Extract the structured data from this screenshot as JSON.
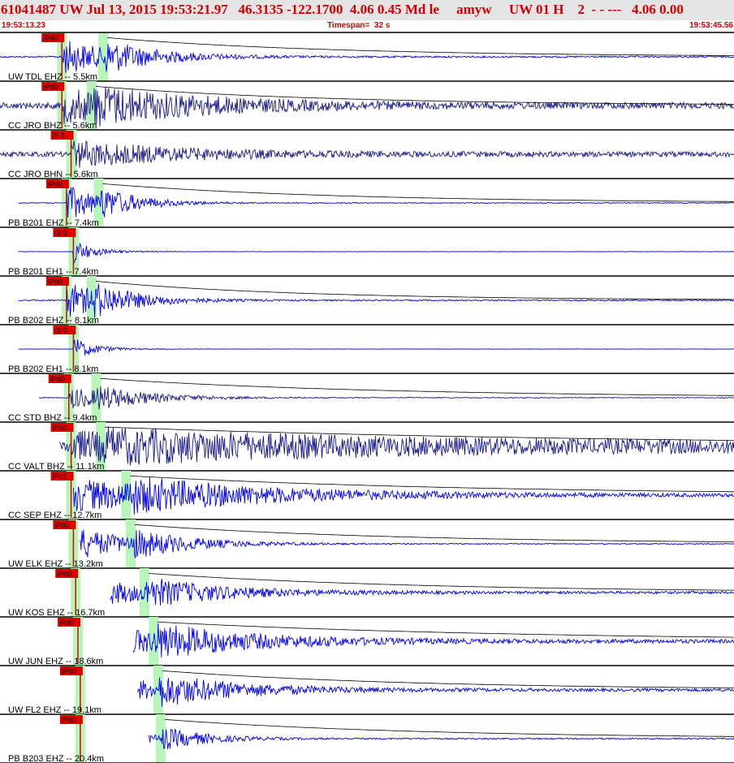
{
  "header": {
    "title": "61041487 UW Jul 13, 2015 19:53:21.97   46.3135 -122.1700  4.06 0.45 Md le     amyw     UW 01 H    2  - - ---   4.06 0.00",
    "start_time": "19:53:13.23",
    "timespan": "Timespan=  32 s",
    "end_time": "19:53:45.56"
  },
  "colors": {
    "trace": "#0000ff",
    "trace_dark": "#1a1a8c",
    "pick": "#e00000",
    "coda": "#c00000",
    "window": "#b8f5b8",
    "header_text": "#d40000",
    "header_bg": "#e4e4e4"
  },
  "chart_data": {
    "type": "line",
    "timespan_s": 32,
    "start_time": "19:53:13.23",
    "end_time": "19:53:45.56",
    "xlim": [
      0,
      32
    ],
    "channels": [
      {
        "label": "UW TDL EHZ -- 5.5km",
        "p_pick": "iPd0",
        "p_time": 2.7,
        "s_time": 4.5,
        "coda_end": 39.5,
        "mark": "",
        "start": 0.0,
        "end": 83.5,
        "amp_pre": 0.04,
        "amp_peak": 0.85,
        "decay": 3.0,
        "dark": false,
        "has_s_pick": false,
        "p_line": 45,
        "amp_line": 40
      },
      {
        "label": "CC JRO BHZ -- 5.6km",
        "p_pick": "iPd0",
        "p_time": 2.7,
        "s_time": 4.0,
        "coda_end": 40.1,
        "mark": "",
        "start": 0.0,
        "end": 83.5,
        "amp_pre": 0.15,
        "amp_peak": 0.75,
        "decay": 6.0,
        "dark": true,
        "has_s_pick": false,
        "p_line": 45,
        "amp_line": 40
      },
      {
        "label": "CC JRO BHN -- 5.6km",
        "p_pick": "iS 1",
        "p_time": 3.1,
        "s_time": 3.1,
        "coda_end": 0,
        "mark": "",
        "start": 0.0,
        "end": 83.5,
        "amp_pre": 0.12,
        "amp_peak": 0.6,
        "decay": 6.0,
        "dark": true,
        "has_s_pick": true,
        "p_line": 15,
        "amp_line": 0
      },
      {
        "label": "PB B201 EHZ -- 7.4km",
        "p_pick": "iPd0",
        "p_time": 2.9,
        "s_time": 4.3,
        "coda_end": 40.9,
        "mark": "",
        "start": 0.8,
        "end": 84.6,
        "amp_pre": 0.02,
        "amp_peak": 0.85,
        "decay": 2.2,
        "dark": false,
        "has_s_pick": false,
        "p_line": 45,
        "amp_line": 0
      },
      {
        "label": "PB B201 EH1 -- 7.4km",
        "p_pick": "iS 0",
        "p_time": 3.2,
        "s_time": 3.2,
        "coda_end": 0,
        "mark": "",
        "start": 0.8,
        "end": 84.6,
        "amp_pre": 0.01,
        "amp_peak": 0.55,
        "decay": 1.2,
        "dark": false,
        "has_s_pick": true,
        "p_line": 45,
        "amp_line": 0
      },
      {
        "label": "PB B202 EHZ -- 8.1km",
        "p_pick": "iPd0",
        "p_time": 2.9,
        "s_time": 4.0,
        "coda_end": 35.8,
        "mark": "+",
        "start": 0.8,
        "end": 84.9,
        "amp_pre": 0.03,
        "amp_peak": 0.85,
        "decay": 2.5,
        "dark": false,
        "has_s_pick": false,
        "p_line": 45,
        "amp_line": 0
      },
      {
        "label": "PB B202 EH1 -- 8.1km",
        "p_pick": "iS 0",
        "p_time": 3.2,
        "s_time": 3.2,
        "coda_end": 0,
        "mark": "",
        "start": 0.8,
        "end": 84.9,
        "amp_pre": 0.01,
        "amp_peak": 0.55,
        "decay": 1.2,
        "dark": false,
        "has_s_pick": true,
        "p_line": 45,
        "amp_line": 0
      },
      {
        "label": "CC STD BHZ -- 9.4km",
        "p_pick": "iPd0",
        "p_time": 3.0,
        "s_time": 4.2,
        "coda_end": 48.7,
        "mark": "-",
        "start": 1.7,
        "end": 85.6,
        "amp_pre": 0.02,
        "amp_peak": 0.55,
        "decay": 3.0,
        "dark": true,
        "has_s_pick": false,
        "p_line": 45,
        "amp_line": 0
      },
      {
        "label": "CC VALT BHZ -- 11.1km",
        "p_pick": "iPd0",
        "p_time": 3.1,
        "s_time": 4.4,
        "coda_end": 86.3,
        "mark": "",
        "start": 2.6,
        "end": 86.3,
        "amp_pre": 0.28,
        "amp_peak": 0.5,
        "decay": 14.0,
        "dark": true,
        "has_s_pick": false,
        "p_line": 45,
        "amp_line": 0
      },
      {
        "label": "CC SEP EHZ -- 12.7km",
        "p_pick": "iPc1",
        "p_time": 3.1,
        "s_time": 5.5,
        "coda_end": 58.5,
        "mark": "",
        "start": 3.2,
        "end": 87.2,
        "amp_pre": 0.07,
        "amp_peak": 0.75,
        "decay": 8.0,
        "dark": false,
        "has_s_pick": false,
        "p_line": 0,
        "amp_line": 60
      },
      {
        "label": "UW ELK EHZ -- 13.2km",
        "p_pick": "iPd0",
        "p_time": 3.2,
        "s_time": 5.7,
        "coda_end": 46.0,
        "mark": "+",
        "start": 3.5,
        "end": 87.3,
        "amp_pre": 0.02,
        "amp_peak": 0.8,
        "decay": 3.5,
        "dark": false,
        "has_s_pick": false,
        "p_line": 0,
        "amp_line": 40
      },
      {
        "label": "UW KOS EHZ -- 16.7km",
        "p_pick": "iPd0",
        "p_time": 3.3,
        "s_time": 6.3,
        "coda_end": 48.4,
        "mark": "+",
        "start": 4.8,
        "end": 88.8,
        "amp_pre": 0.06,
        "amp_peak": 0.75,
        "decay": 4.5,
        "dark": false,
        "has_s_pick": false,
        "p_line": 45,
        "amp_line": 0
      },
      {
        "label": "UW JUN EHZ -- 18.6km",
        "p_pick": "iPd0",
        "p_time": 3.4,
        "s_time": 6.7,
        "coda_end": 62.5,
        "mark": "",
        "start": 5.8,
        "end": 87.0,
        "amp_pre": 0.09,
        "amp_peak": 0.85,
        "decay": 5.5,
        "dark": false,
        "has_s_pick": false,
        "p_line": 0,
        "amp_line": 40
      },
      {
        "label": "UW FL2 EHZ -- 19.1km",
        "p_pick": "iPd0",
        "p_time": 3.5,
        "s_time": 6.9,
        "coda_end": 45.8,
        "mark": "+",
        "start": 6.0,
        "end": 89.3,
        "amp_pre": 0.07,
        "amp_peak": 0.85,
        "decay": 4.5,
        "dark": false,
        "has_s_pick": false,
        "p_line": 60,
        "amp_line": 40
      },
      {
        "label": "PB B203 EHZ -- 20.4km",
        "p_pick": "iPd0",
        "p_time": 3.5,
        "s_time": 7.0,
        "coda_end": 46.6,
        "mark": "+",
        "start": 6.5,
        "end": 89.4,
        "amp_pre": 0.03,
        "amp_peak": 0.8,
        "decay": 2.5,
        "dark": false,
        "has_s_pick": false,
        "p_line": 60,
        "amp_line": 0
      }
    ]
  }
}
